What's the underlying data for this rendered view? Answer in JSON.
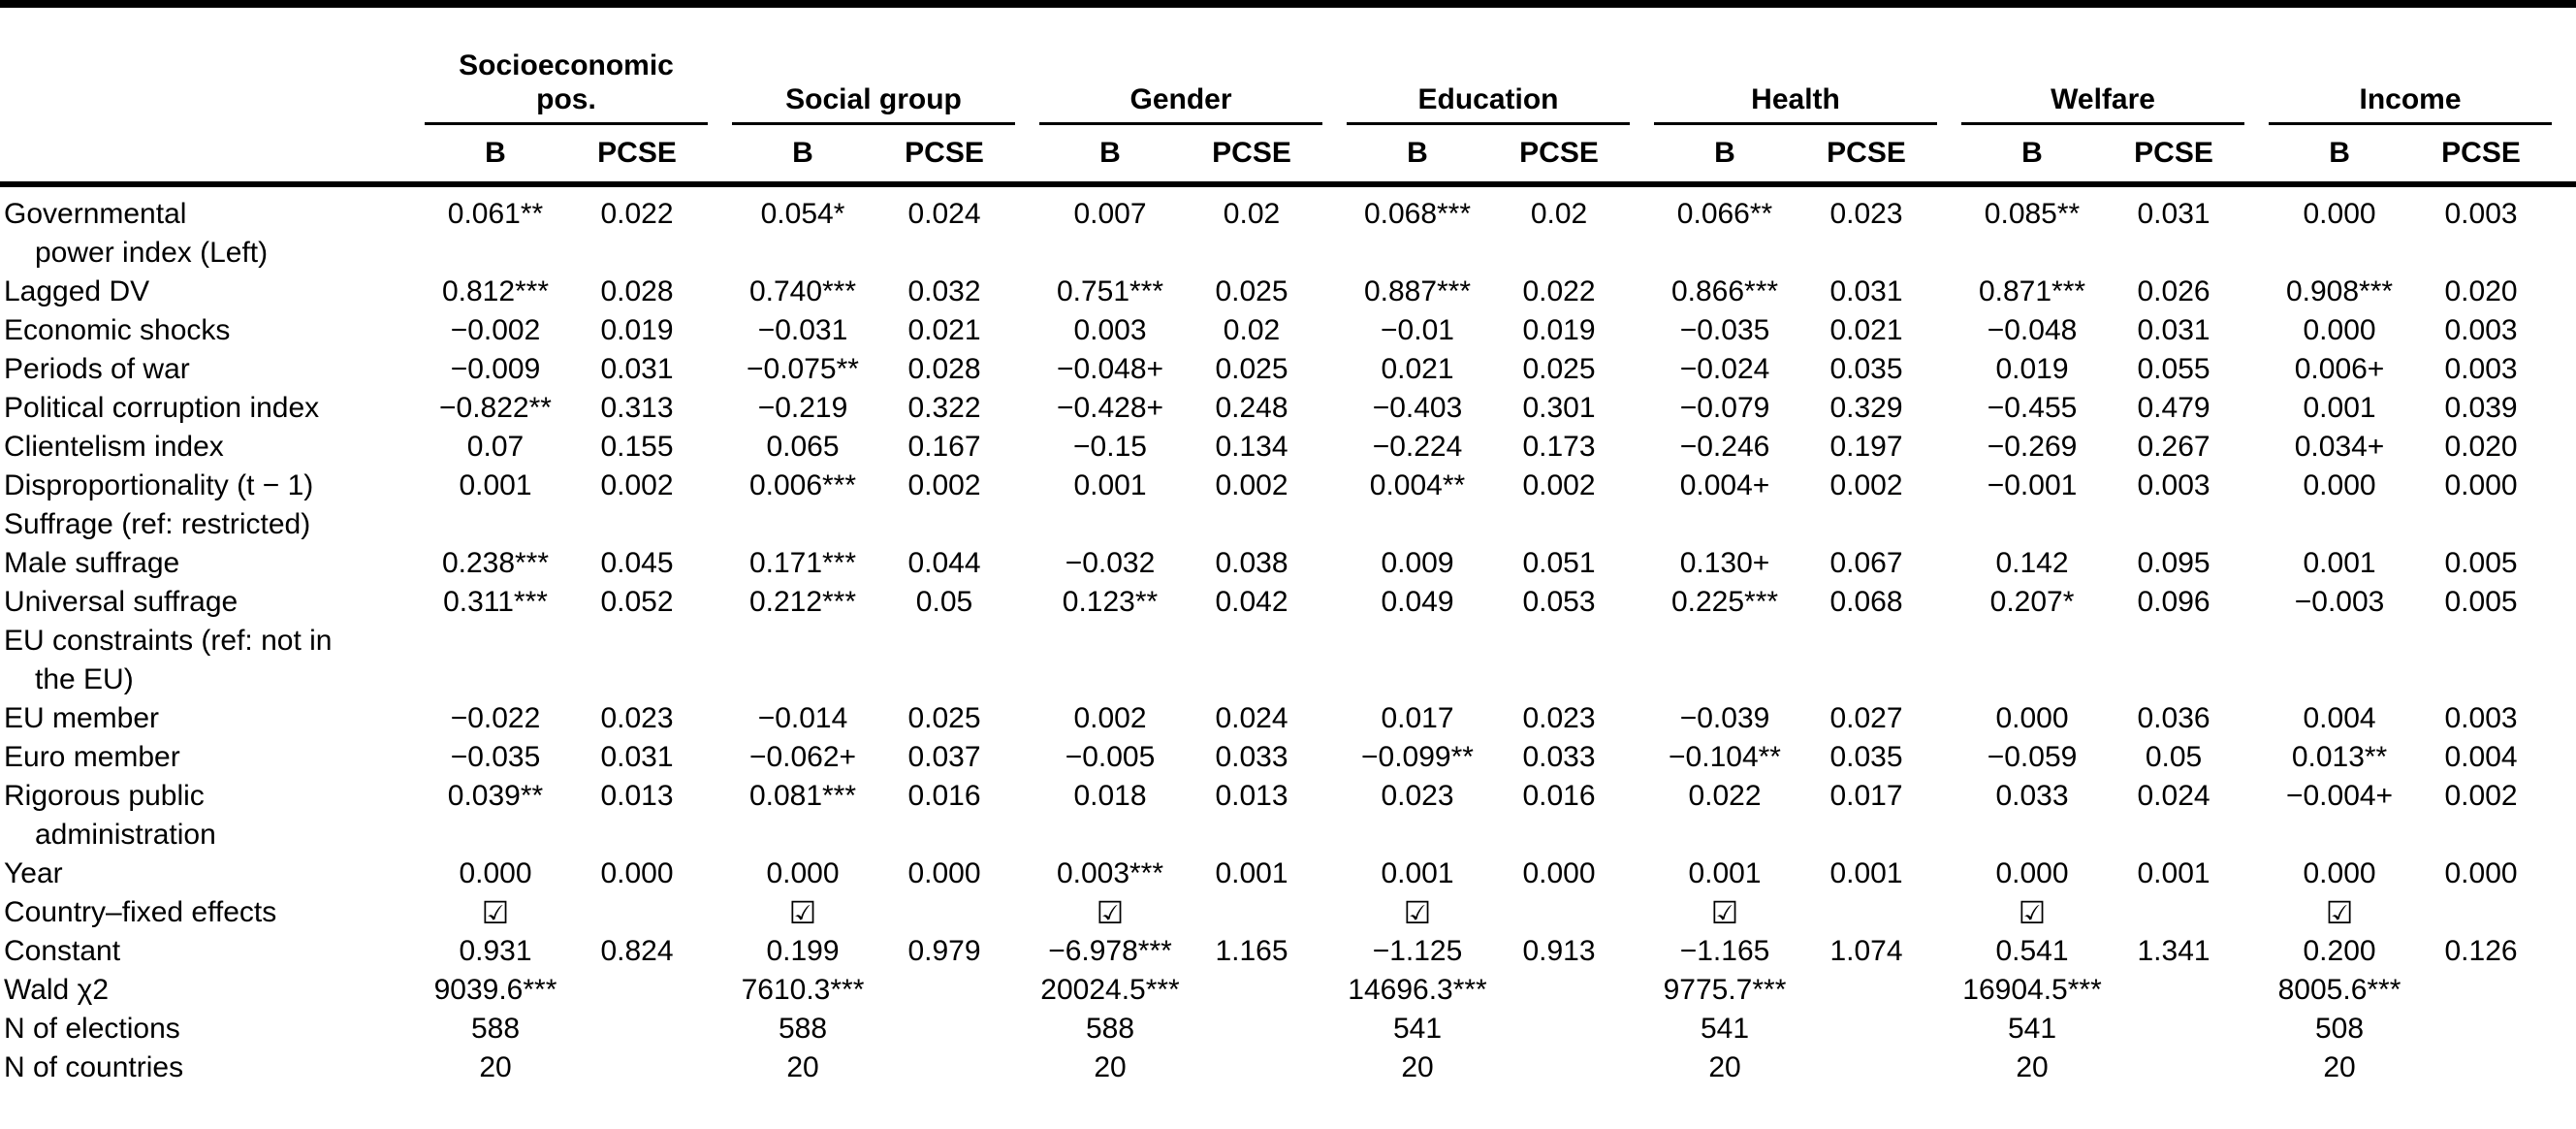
{
  "table": {
    "corner_label": "",
    "subheaders": {
      "b": "B",
      "pcse": "PCSE"
    },
    "checkbox_symbol": "☑",
    "groups": [
      {
        "label_lines": [
          "Socioeconomic",
          "pos."
        ]
      },
      {
        "label_lines": [
          "Social group"
        ]
      },
      {
        "label_lines": [
          "Gender"
        ]
      },
      {
        "label_lines": [
          "Education"
        ]
      },
      {
        "label_lines": [
          "Health"
        ]
      },
      {
        "label_lines": [
          "Welfare"
        ]
      },
      {
        "label_lines": [
          "Income"
        ]
      }
    ],
    "rows": [
      {
        "type": "data",
        "label_lines": [
          "Governmental",
          "power index (Left)"
        ],
        "values": [
          "0.061**",
          "0.022",
          "0.054*",
          "0.024",
          "0.007",
          "0.02",
          "0.068***",
          "0.02",
          "0.066**",
          "0.023",
          "0.085**",
          "0.031",
          "0.000",
          "0.003"
        ]
      },
      {
        "type": "data",
        "label_lines": [
          "Lagged DV"
        ],
        "values": [
          "0.812***",
          "0.028",
          "0.740***",
          "0.032",
          "0.751***",
          "0.025",
          "0.887***",
          "0.022",
          "0.866***",
          "0.031",
          "0.871***",
          "0.026",
          "0.908***",
          "0.020"
        ]
      },
      {
        "type": "data",
        "label_lines": [
          "Economic shocks"
        ],
        "values": [
          "−0.002",
          "0.019",
          "−0.031",
          "0.021",
          "0.003",
          "0.02",
          "−0.01",
          "0.019",
          "−0.035",
          "0.021",
          "−0.048",
          "0.031",
          "0.000",
          "0.003"
        ]
      },
      {
        "type": "data",
        "label_lines": [
          "Periods of war"
        ],
        "values": [
          "−0.009",
          "0.031",
          "−0.075**",
          "0.028",
          "−0.048+",
          "0.025",
          "0.021",
          "0.025",
          "−0.024",
          "0.035",
          "0.019",
          "0.055",
          "0.006+",
          "0.003"
        ]
      },
      {
        "type": "data",
        "label_lines": [
          "Political corruption index"
        ],
        "values": [
          "−0.822**",
          "0.313",
          "−0.219",
          "0.322",
          "−0.428+",
          "0.248",
          "−0.403",
          "0.301",
          "−0.079",
          "0.329",
          "−0.455",
          "0.479",
          "0.001",
          "0.039"
        ]
      },
      {
        "type": "data",
        "label_lines": [
          "Clientelism index"
        ],
        "values": [
          "0.07",
          "0.155",
          "0.065",
          "0.167",
          "−0.15",
          "0.134",
          "−0.224",
          "0.173",
          "−0.246",
          "0.197",
          "−0.269",
          "0.267",
          "0.034+",
          "0.020"
        ]
      },
      {
        "type": "data",
        "label_lines": [
          "Disproportionality (t − 1)"
        ],
        "values": [
          "0.001",
          "0.002",
          "0.006***",
          "0.002",
          "0.001",
          "0.002",
          "0.004**",
          "0.002",
          "0.004+",
          "0.002",
          "−0.001",
          "0.003",
          "0.000",
          "0.000"
        ]
      },
      {
        "type": "label-only",
        "label_lines": [
          "Suffrage (ref: restricted)"
        ]
      },
      {
        "type": "data",
        "label_lines": [
          "Male suffrage"
        ],
        "values": [
          "0.238***",
          "0.045",
          "0.171***",
          "0.044",
          "−0.032",
          "0.038",
          "0.009",
          "0.051",
          "0.130+",
          "0.067",
          "0.142",
          "0.095",
          "0.001",
          "0.005"
        ]
      },
      {
        "type": "data",
        "label_lines": [
          "Universal suffrage"
        ],
        "values": [
          "0.311***",
          "0.052",
          "0.212***",
          "0.05",
          "0.123**",
          "0.042",
          "0.049",
          "0.053",
          "0.225***",
          "0.068",
          "0.207*",
          "0.096",
          "−0.003",
          "0.005"
        ]
      },
      {
        "type": "label-only",
        "label_lines": [
          "EU constraints (ref: not in",
          "the EU)"
        ]
      },
      {
        "type": "data",
        "label_lines": [
          "EU member"
        ],
        "values": [
          "−0.022",
          "0.023",
          "−0.014",
          "0.025",
          "0.002",
          "0.024",
          "0.017",
          "0.023",
          "−0.039",
          "0.027",
          "0.000",
          "0.036",
          "0.004",
          "0.003"
        ]
      },
      {
        "type": "data",
        "label_lines": [
          "Euro member"
        ],
        "values": [
          "−0.035",
          "0.031",
          "−0.062+",
          "0.037",
          "−0.005",
          "0.033",
          "−0.099**",
          "0.033",
          "−0.104**",
          "0.035",
          "−0.059",
          "0.05",
          "0.013**",
          "0.004"
        ]
      },
      {
        "type": "data",
        "label_lines": [
          "Rigorous public",
          "administration"
        ],
        "values": [
          "0.039**",
          "0.013",
          "0.081***",
          "0.016",
          "0.018",
          "0.013",
          "0.023",
          "0.016",
          "0.022",
          "0.017",
          "0.033",
          "0.024",
          "−0.004+",
          "0.002"
        ]
      },
      {
        "type": "data",
        "label_lines": [
          "Year"
        ],
        "values": [
          "0.000",
          "0.000",
          "0.000",
          "0.000",
          "0.003***",
          "0.001",
          "0.001",
          "0.000",
          "0.001",
          "0.001",
          "0.000",
          "0.001",
          "0.000",
          "0.000"
        ]
      },
      {
        "type": "checkbox",
        "label_lines": [
          "Country–fixed effects"
        ],
        "checked": [
          true,
          true,
          true,
          true,
          true,
          true,
          true
        ]
      },
      {
        "type": "data",
        "label_lines": [
          "Constant"
        ],
        "values": [
          "0.931",
          "0.824",
          "0.199",
          "0.979",
          "−6.978***",
          "1.165",
          "−1.125",
          "0.913",
          "−1.165",
          "1.074",
          "0.541",
          "1.341",
          "0.200",
          "0.126"
        ]
      },
      {
        "type": "summary",
        "label_lines": [
          "Wald χ2"
        ],
        "values": [
          "9039.6***",
          "7610.3***",
          "20024.5***",
          "14696.3***",
          "9775.7***",
          "16904.5***",
          "8005.6***"
        ]
      },
      {
        "type": "summary",
        "label_lines": [
          "N of elections"
        ],
        "values": [
          "588",
          "588",
          "588",
          "541",
          "541",
          "541",
          "508"
        ]
      },
      {
        "type": "summary",
        "label_lines": [
          "N of countries"
        ],
        "values": [
          "20",
          "20",
          "20",
          "20",
          "20",
          "20",
          "20"
        ]
      }
    ]
  }
}
